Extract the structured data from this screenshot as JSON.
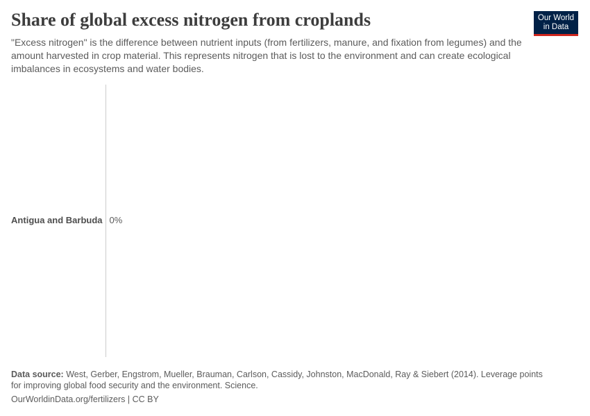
{
  "chart_data": {
    "type": "bar",
    "orientation": "horizontal",
    "title": "Share of global excess nitrogen from croplands",
    "subtitle": "\"Excess nitrogen\" is the difference between nutrient inputs (from fertilizers, manure, and fixation from legumes) and the amount harvested in crop material. This represents nitrogen that is lost to the environment and can create ecological imbalances in ecosystems and water bodies.",
    "categories": [
      "Antigua and Barbuda"
    ],
    "values": [
      0
    ],
    "value_labels": [
      "0%"
    ],
    "color": "#3c6fb4",
    "source_label": "Data source:",
    "source": "West, Gerber, Engstrom, Mueller, Brauman, Carlson, Cassidy, Johnston, MacDonald, Ray & Siebert (2014). Leverage points for improving global food security and the environment. Science.",
    "footer": "OurWorldinData.org/fertilizers | CC BY",
    "logo": [
      "Our World",
      "in Data"
    ]
  }
}
